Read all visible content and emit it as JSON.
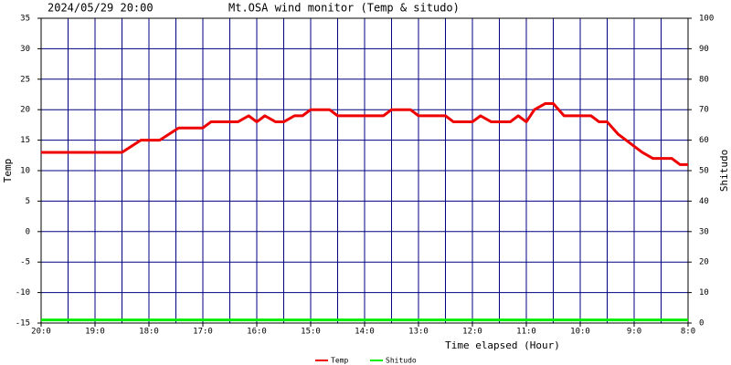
{
  "chart_data": {
    "type": "line",
    "date": "2024/05/29 20:00",
    "title": "Mt.OSA wind monitor (Temp & situdo)",
    "x_label": "Time elapsed (Hour)",
    "y_label": "Temp",
    "y2_label": "Shitudo",
    "xlim": [
      0,
      12
    ],
    "xticks": [
      {
        "value": 0,
        "label": "20:0"
      },
      {
        "value": 1,
        "label": "19:0"
      },
      {
        "value": 2,
        "label": "18:0"
      },
      {
        "value": 3,
        "label": "17:0"
      },
      {
        "value": 4,
        "label": "16:0"
      },
      {
        "value": 5,
        "label": "15:0"
      },
      {
        "value": 6,
        "label": "14:0"
      },
      {
        "value": 7,
        "label": "13:0"
      },
      {
        "value": 8,
        "label": "12:0"
      },
      {
        "value": 9,
        "label": "11:0"
      },
      {
        "value": 10,
        "label": "10:0"
      },
      {
        "value": 11,
        "label": "9:0"
      },
      {
        "value": 12,
        "label": "8:0"
      }
    ],
    "x_minor_ticks": [
      0.5,
      1.5,
      2.5,
      3.5,
      4.5,
      5.5,
      6.5,
      7.5,
      8.5,
      9.5,
      10.5,
      11.5
    ],
    "ylim": [
      -15,
      35
    ],
    "yticks": [
      -15,
      -10,
      -5,
      0,
      5,
      10,
      15,
      20,
      25,
      30,
      35
    ],
    "y2lim": [
      0,
      100
    ],
    "y2ticks": [
      0,
      10,
      20,
      30,
      40,
      50,
      60,
      70,
      80,
      90,
      100
    ],
    "grid": true,
    "grid_color": "#000080",
    "series": [
      {
        "name": "Temp",
        "color": "#ee0000",
        "x": [
          0,
          1.5,
          1.85,
          2.2,
          2.55,
          3.0,
          3.15,
          3.65,
          3.85,
          4.0,
          4.15,
          4.35,
          4.5,
          4.7,
          4.85,
          5.0,
          5.35,
          5.5,
          6.35,
          6.5,
          6.85,
          7.0,
          7.5,
          7.65,
          8.0,
          8.15,
          8.35,
          8.7,
          8.85,
          9.0,
          9.15,
          9.35,
          9.5,
          9.7,
          10.2,
          10.35,
          10.5,
          10.7,
          10.85,
          11.0,
          11.15,
          11.35,
          11.7,
          11.85,
          12
        ],
        "values": [
          13,
          13,
          15,
          15,
          17,
          17,
          18,
          18,
          19,
          18,
          19,
          18,
          18,
          19,
          19,
          20,
          20,
          19,
          19,
          20,
          20,
          19,
          19,
          18,
          18,
          19,
          18,
          18,
          19,
          18,
          20,
          21,
          21,
          19,
          19,
          18,
          18,
          16,
          15,
          14,
          13,
          12,
          12,
          11,
          11
        ]
      },
      {
        "name": "Shitudo",
        "color": "#00ee00",
        "axis": "y2",
        "x": [
          0,
          12
        ],
        "values": [
          1,
          1
        ]
      }
    ]
  }
}
